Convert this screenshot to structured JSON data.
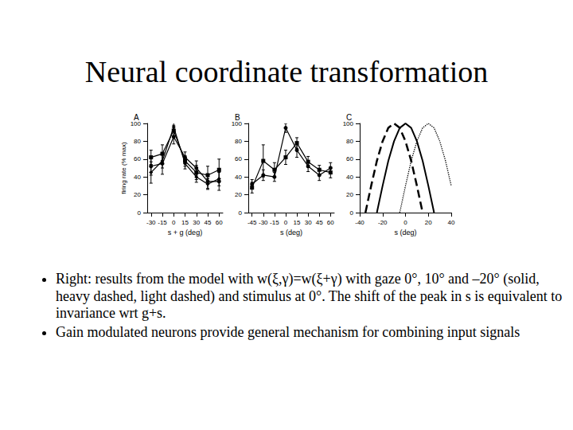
{
  "title": "Neural coordinate transformation",
  "bullets": [
    "Right: results from the model with w(ξ,γ)=w(ξ+γ) with gaze 0°, 10° and –20° (solid, heavy dashed, light dashed) and stimulus at 0°. The shift of the peak in s is equivalent to invariance wrt g+s.",
    "Gain modulated neurons provide general mechanism for combining input signals"
  ],
  "chart_data": [
    {
      "type": "line",
      "title": "A",
      "x_label": "s + g (deg)",
      "y_label": "firing rate (% max)",
      "x": [
        -30,
        -15,
        0,
        15,
        30,
        45,
        60
      ],
      "series": [
        {
          "color": "#000000",
          "marker": "rect",
          "values": [
            62,
            66,
            92,
            58,
            45,
            42,
            48
          ],
          "errors": [
            8,
            10,
            6,
            6,
            8,
            10,
            12
          ]
        },
        {
          "color": "#000000",
          "marker": "circle",
          "values": [
            52,
            55,
            85,
            62,
            50,
            35,
            35
          ],
          "errors": [
            10,
            12,
            8,
            6,
            8,
            8,
            10
          ]
        },
        {
          "color": "#000000",
          "marker": "diamond",
          "values": [
            45,
            58,
            96,
            55,
            40,
            32,
            38
          ],
          "errors": [
            12,
            8,
            5,
            6,
            6,
            6,
            8
          ]
        }
      ],
      "xlim": [
        -35,
        65
      ],
      "xticks": [
        -30,
        -15,
        0,
        15,
        30,
        45,
        60
      ],
      "ylim": [
        0,
        100
      ],
      "yticks": [
        0,
        20,
        40,
        60,
        80,
        100
      ],
      "grid": false
    },
    {
      "type": "line",
      "title": "B",
      "x_label": "s (deg)",
      "x": [
        -45,
        -30,
        -15,
        0,
        15,
        30,
        45,
        60
      ],
      "series": [
        {
          "color": "#000000",
          "marker": "circle",
          "values": [
            32,
            42,
            40,
            95,
            70,
            52,
            42,
            50
          ],
          "errors": [
            5,
            6,
            5,
            5,
            8,
            6,
            6,
            6
          ]
        },
        {
          "color": "#000000",
          "marker": "rect",
          "values": [
            28,
            58,
            48,
            62,
            78,
            57,
            48,
            45
          ],
          "errors": [
            6,
            18,
            8,
            8,
            6,
            6,
            5,
            6
          ]
        }
      ],
      "xlim": [
        -50,
        65
      ],
      "xticks": [
        -45,
        -30,
        -15,
        0,
        15,
        30,
        45,
        60
      ],
      "ylim": [
        0,
        100
      ],
      "yticks": [
        0,
        20,
        40,
        60,
        80,
        100
      ],
      "grid": false
    },
    {
      "type": "line",
      "title": "C",
      "x_label": "s (deg)",
      "x": [
        -40,
        -35,
        -30,
        -25,
        -20,
        -15,
        -10,
        -5,
        0,
        5,
        10,
        15,
        20,
        25,
        30,
        35,
        40
      ],
      "series": [
        {
          "color": "#000000",
          "line_style": "solid",
          "values": [
            null,
            null,
            null,
            0,
            30,
            58,
            80,
            95,
            100,
            95,
            80,
            58,
            30,
            0,
            null,
            null,
            null
          ]
        },
        {
          "color": "#000000",
          "line_style": "dashed",
          "values": [
            null,
            0,
            30,
            58,
            80,
            95,
            100,
            95,
            80,
            58,
            30,
            0,
            null,
            null,
            null,
            null,
            null
          ]
        },
        {
          "color": "#000000",
          "line_style": "dotted",
          "values": [
            null,
            null,
            null,
            null,
            null,
            null,
            null,
            0,
            30,
            58,
            80,
            95,
            100,
            95,
            80,
            58,
            30
          ]
        }
      ],
      "xlim": [
        -40,
        40
      ],
      "xticks": [
        -40,
        -20,
        0,
        20,
        40
      ],
      "ylim": [
        0,
        100
      ],
      "yticks": [
        0,
        20,
        40,
        60,
        80,
        100
      ],
      "grid": false
    }
  ]
}
